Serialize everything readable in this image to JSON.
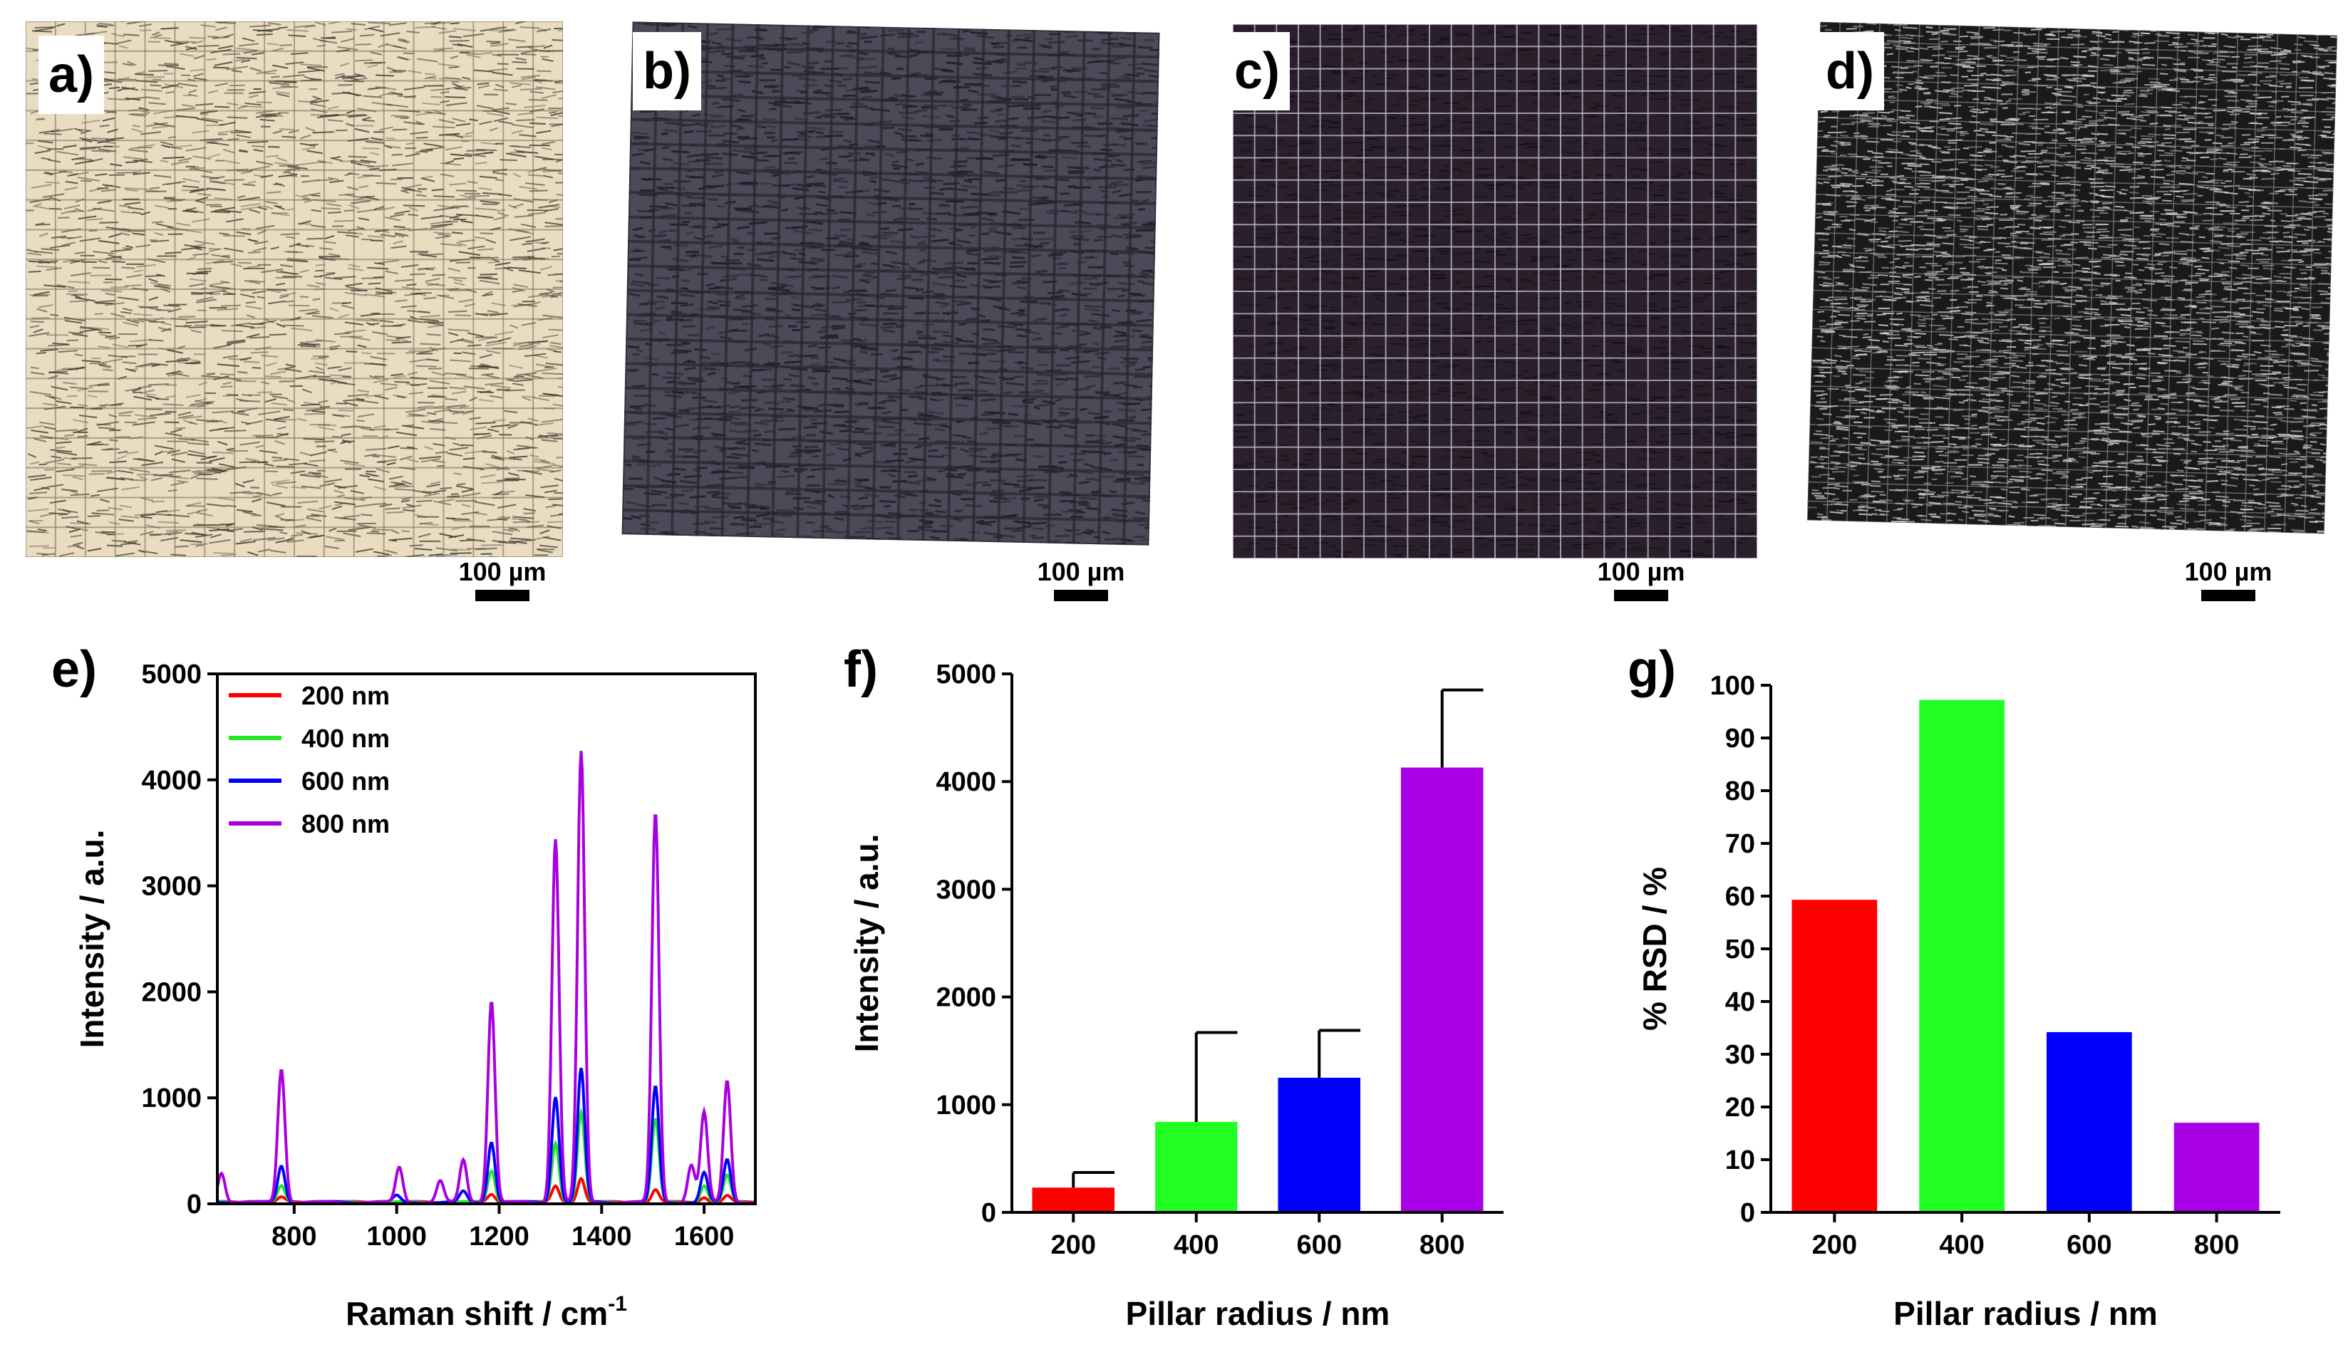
{
  "panels": {
    "a": "a)",
    "b": "b)",
    "c": "c)",
    "d": "d)",
    "e": "e)",
    "f": "f)",
    "g": "g)"
  },
  "micrographs": {
    "a": {
      "scale_label": "100 µm",
      "colors": {
        "base": "#e9dcc0",
        "line": "#3f3a30",
        "grid": "#6a604c"
      }
    },
    "b": {
      "scale_label": "100 µm",
      "colors": {
        "base": "#4b4a58",
        "line": "#1c1c25",
        "grid": "#26262f"
      }
    },
    "c": {
      "scale_label": "100 µm",
      "colors": {
        "base": "#2a1f2a",
        "line": "#140e15",
        "grid": "#bfc2d8"
      }
    },
    "d": {
      "scale_label": "100 µm",
      "colors": {
        "base": "#1a1a1c",
        "line": "#d8d8d8",
        "grid": "#9a9a9a"
      }
    }
  },
  "chart_data": [
    {
      "panel": "e",
      "type": "line",
      "title": "",
      "xlabel": "Raman shift / cm",
      "xlabel_sup": "-1",
      "ylabel": "Intensity / a.u.",
      "xlim": [
        650,
        1700
      ],
      "ylim": [
        0,
        5000
      ],
      "xticks": [
        800,
        1000,
        1200,
        1400,
        1600
      ],
      "yticks": [
        0,
        1000,
        2000,
        3000,
        4000,
        5000
      ],
      "legend_position": "top-left",
      "series": [
        {
          "name": "200 nm",
          "color": "#ff0000",
          "peaks": [
            [
              775,
              45
            ],
            [
              1185,
              70
            ],
            [
              1310,
              150
            ],
            [
              1360,
              230
            ],
            [
              1505,
              120
            ],
            [
              1600,
              50
            ],
            [
              1645,
              60
            ]
          ]
        },
        {
          "name": "400 nm",
          "color": "#22e822",
          "peaks": [
            [
              775,
              150
            ],
            [
              1185,
              300
            ],
            [
              1310,
              560
            ],
            [
              1360,
              850
            ],
            [
              1505,
              780
            ],
            [
              1600,
              160
            ],
            [
              1645,
              250
            ]
          ]
        },
        {
          "name": "600 nm",
          "color": "#0000ff",
          "peaks": [
            [
              775,
              340
            ],
            [
              1000,
              60
            ],
            [
              1130,
              100
            ],
            [
              1185,
              570
            ],
            [
              1310,
              1000
            ],
            [
              1360,
              1260
            ],
            [
              1505,
              1090
            ],
            [
              1600,
              280
            ],
            [
              1645,
              400
            ]
          ]
        },
        {
          "name": "800 nm",
          "color": "#a800e0",
          "peaks": [
            [
              658,
              280
            ],
            [
              775,
              1260
            ],
            [
              1005,
              330
            ],
            [
              1085,
              200
            ],
            [
              1130,
              400
            ],
            [
              1185,
              1900
            ],
            [
              1310,
              3430
            ],
            [
              1360,
              4250
            ],
            [
              1505,
              3680
            ],
            [
              1575,
              350
            ],
            [
              1600,
              850
            ],
            [
              1645,
              1150
            ]
          ]
        }
      ]
    },
    {
      "panel": "f",
      "type": "bar",
      "title": "",
      "xlabel": "Pillar radius / nm",
      "ylabel": "Intensity / a.u.",
      "categories": [
        "200",
        "400",
        "600",
        "800"
      ],
      "values": [
        230,
        840,
        1250,
        4130
      ],
      "error_upper": [
        370,
        1670,
        1690,
        4850
      ],
      "colors": [
        "#ff0000",
        "#22ff22",
        "#0000ff",
        "#aa00e8"
      ],
      "ylim": [
        0,
        5000
      ],
      "yticks": [
        0,
        1000,
        2000,
        3000,
        4000,
        5000
      ]
    },
    {
      "panel": "g",
      "type": "bar",
      "title": "",
      "xlabel": "Pillar radius / nm",
      "ylabel": "% RSD / %",
      "categories": [
        "200",
        "400",
        "600",
        "800"
      ],
      "values": [
        59.3,
        97.2,
        34.2,
        17
      ],
      "colors": [
        "#ff0000",
        "#22ff22",
        "#0000ff",
        "#aa00e8"
      ],
      "ylim": [
        0,
        100
      ],
      "yticks": [
        0,
        10,
        20,
        30,
        40,
        50,
        60,
        70,
        80,
        90,
        100
      ]
    }
  ]
}
